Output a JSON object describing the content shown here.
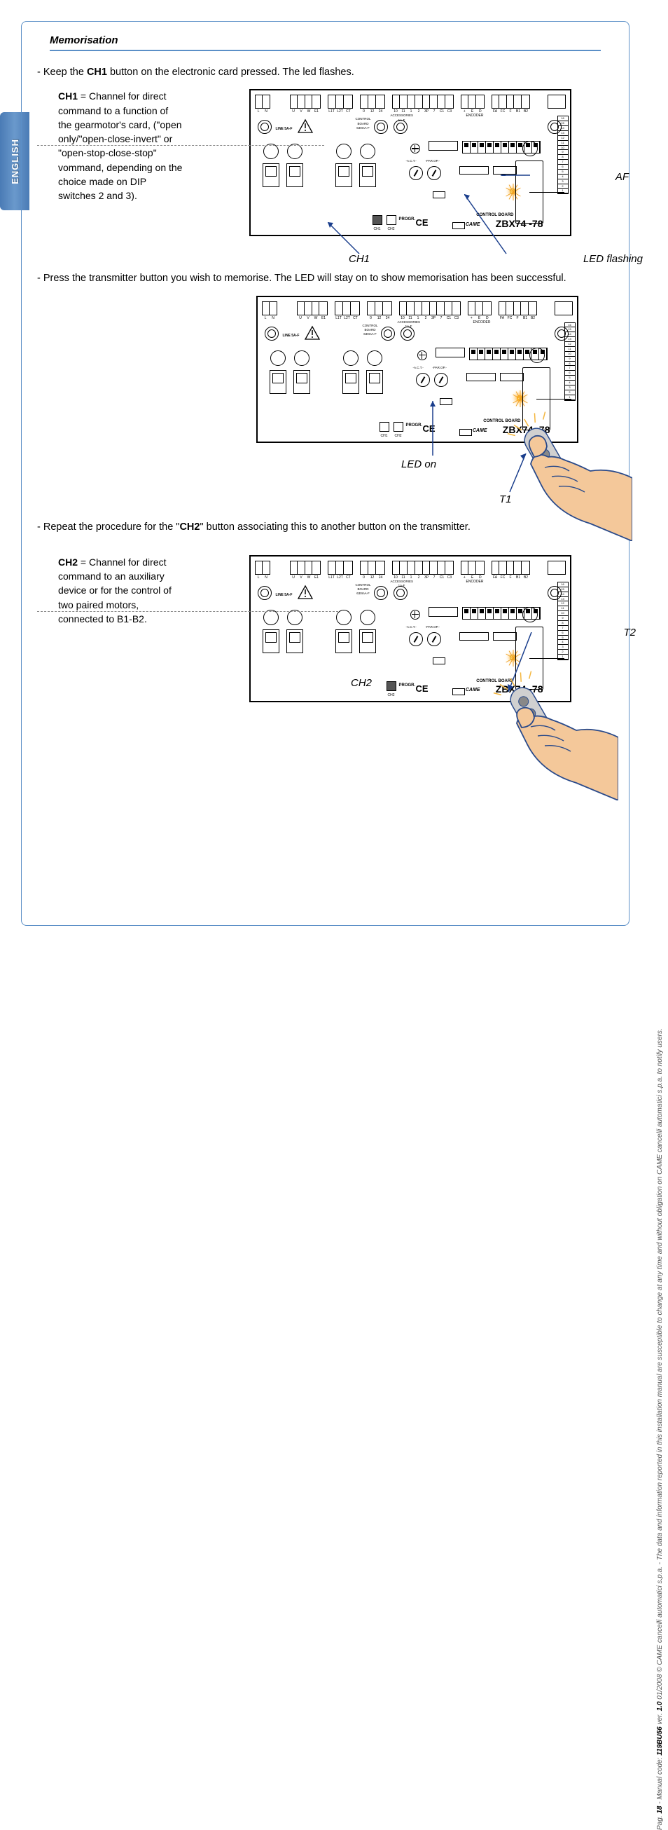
{
  "language_tab": "ENGLISH",
  "section": {
    "title": "Memorisation"
  },
  "step1": {
    "text_pre": "- Keep the ",
    "text_bold": "CH1",
    "text_post": " button on the electronic card pressed. The led flashes."
  },
  "ch1_def": {
    "bold": "CH1",
    "text": " = Channel for direct command to a function of the gearmotor's card, (\"open only/\"open-close-invert\" or \"open-stop-close-stop\" vommand, depending on the choice made on DIP switches 2 and 3)."
  },
  "board": {
    "model": "ZBX74 -78",
    "control_sub": "CONTROL BOARD",
    "ce": "CE",
    "came": "CAME",
    "progr": "PROGR.",
    "ch1": "CH1",
    "ch2": "CH2",
    "line_label": "LINE 5A-F",
    "cb_label1": "CONTROL",
    "cb_label2": "BOARD",
    "cb_label3": "630mA-F",
    "acc_label1": "ACCESSORIES",
    "acc_label2": "1A-F",
    "act_label": "A.C.T.",
    "parop_label": "PAR.OP.",
    "encoder_label": "ENCODER",
    "term_a": [
      "L",
      "N"
    ],
    "term_b": [
      "U",
      "V",
      "W",
      "E1"
    ],
    "term_c": [
      "L1T",
      "L2T",
      "CT"
    ],
    "term_d": [
      "0",
      "12",
      "24"
    ],
    "term_e": [
      "10",
      "11",
      "1",
      "2",
      "3P",
      "7",
      "C1",
      "C3"
    ],
    "term_f": [
      "+",
      "E",
      "D"
    ],
    "term_g": [
      "FA",
      "FC",
      "F",
      "B1",
      "B2"
    ],
    "side_nums": [
      "1",
      "2",
      "3",
      "4",
      "5",
      "6",
      "7",
      "8",
      "9",
      "10",
      "11",
      "12",
      "13",
      "14",
      "15",
      "16"
    ]
  },
  "annot1": {
    "af": "AF",
    "led_flashing": "LED flashing",
    "ch1": "CH1"
  },
  "step2": {
    "text": "- Press the transmitter button you wish to memorise. The LED will stay on to show memorisation has been successful."
  },
  "annot2": {
    "led_on": "LED on",
    "t1": "T1"
  },
  "step3": {
    "text_pre": "- Repeat the procedure for the \"",
    "text_bold": "CH2",
    "text_post": "\" button associating this to another button on the transmitter."
  },
  "ch2_def": {
    "bold": "CH2",
    "text": " = Channel for direct command to an auxiliary device or for the control of two paired motors, connected to B1-B2."
  },
  "annot3": {
    "ch2": "CH2",
    "t2": "T2"
  },
  "footer": {
    "pag": "Pag. ",
    "pagnum": "18",
    "mid1": " - Manual code: ",
    "code": "119BU56",
    "mid2": " ver. ",
    "ver": "1.0",
    "rest": "  01/2008  © CAME cancelli automatici s.p.a. - The data and information reported in this installation manual are susceptible to change at any time and without obligation on CAME cancelli automatici s.p.a. to notify users."
  },
  "colors": {
    "blue": "#5b8fc7",
    "arrow": "#1a3e8c",
    "hand_fill": "#f4c89a",
    "hand_stroke": "#2a4a8a"
  }
}
